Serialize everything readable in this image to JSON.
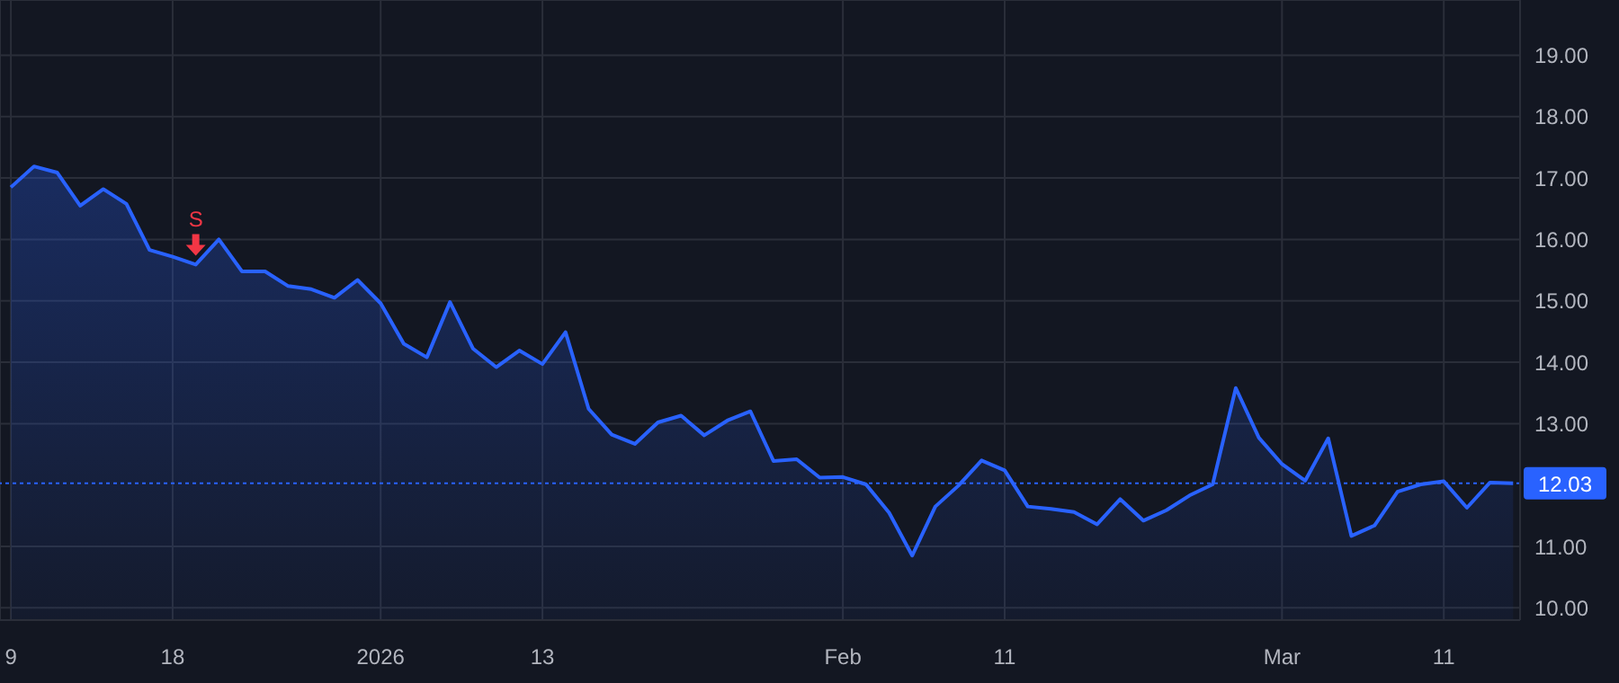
{
  "chart_data": {
    "type": "area",
    "categories": [
      "9",
      null,
      null,
      null,
      null,
      null,
      null,
      "18",
      null,
      null,
      null,
      null,
      null,
      null,
      null,
      null,
      "2026",
      null,
      null,
      null,
      null,
      null,
      null,
      "13",
      null,
      null,
      null,
      null,
      null,
      null,
      null,
      null,
      null,
      null,
      null,
      null,
      "Feb",
      null,
      null,
      null,
      null,
      null,
      null,
      "11",
      null,
      null,
      null,
      null,
      null,
      null,
      null,
      null,
      null,
      null,
      null,
      "Mar",
      null,
      null,
      null,
      null,
      null,
      null,
      "11",
      null,
      null,
      null
    ],
    "series": [
      {
        "color": "#2962ff",
        "values": [
          16.85,
          17.19,
          17.09,
          16.55,
          16.82,
          16.58,
          15.83,
          15.72,
          15.59,
          16.0,
          15.48,
          15.48,
          15.24,
          15.19,
          15.05,
          15.34,
          14.96,
          14.3,
          14.08,
          14.98,
          14.22,
          13.92,
          14.19,
          13.97,
          14.49,
          13.24,
          12.82,
          12.67,
          13.02,
          13.13,
          12.81,
          13.05,
          13.2,
          12.39,
          12.42,
          12.12,
          12.13,
          12.01,
          11.55,
          10.85,
          11.65,
          11.99,
          12.4,
          12.24,
          11.65,
          11.61,
          11.56,
          11.36,
          11.77,
          11.42,
          11.59,
          11.83,
          12.01,
          13.58,
          12.77,
          12.34,
          12.07,
          12.76,
          11.17,
          11.34,
          11.89,
          12.01,
          12.06,
          11.63,
          12.04,
          12.03
        ]
      }
    ],
    "ylim": [
      9.8,
      19.9
    ],
    "yticks": [
      {
        "value": 10,
        "label": "10.00"
      },
      {
        "value": 11,
        "label": "11.00"
      },
      {
        "value": 13,
        "label": "13.00"
      },
      {
        "value": 14,
        "label": "14.00"
      },
      {
        "value": 15,
        "label": "15.00"
      },
      {
        "value": 16,
        "label": "16.00"
      },
      {
        "value": 17,
        "label": "17.00"
      },
      {
        "value": 18,
        "label": "18.00"
      },
      {
        "value": 19,
        "label": "19.00"
      }
    ],
    "ref_lines": [
      {
        "axis": "y",
        "value": 12.03,
        "label": "12.03",
        "color": "#2962ff",
        "line_style": "dotted"
      }
    ],
    "annotations": [
      {
        "text": "S",
        "y": 15.59
      }
    ],
    "grid": true
  }
}
